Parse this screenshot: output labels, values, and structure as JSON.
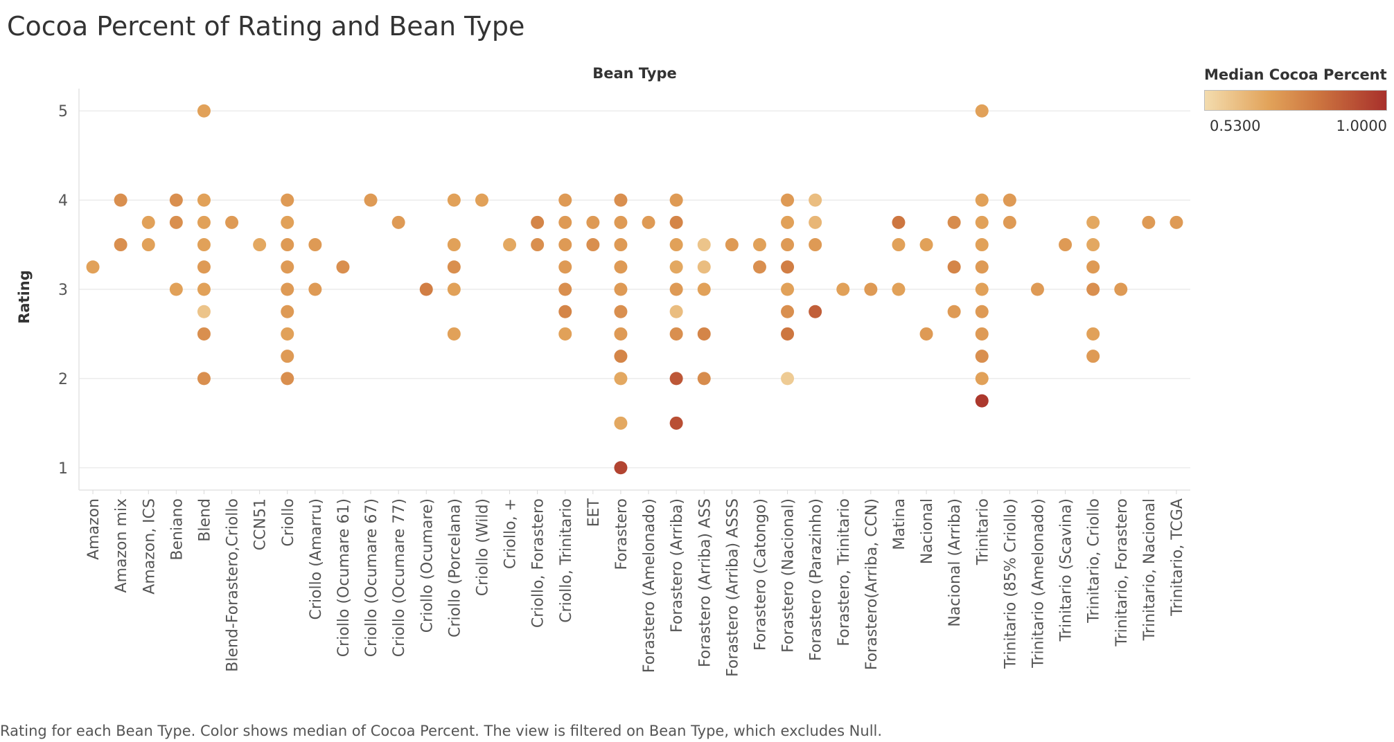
{
  "title": "Cocoa Percent of Rating and Bean Type",
  "caption": "Rating for each Bean Type.  Color shows median of Cocoa Percent. The view is filtered on Bean Type, which excludes Null.",
  "legend": {
    "title": "Median Cocoa Percent",
    "min_label": "0.5300",
    "max_label": "1.0000"
  },
  "colors": {
    "low": "#f3dcae",
    "mid1": "#e2a35a",
    "mid2": "#cd7640",
    "high": "#a8302b"
  },
  "chart_data": {
    "type": "scatter",
    "column_header": "Bean Type",
    "ylabel": "Rating",
    "ylim": [
      0.75,
      5.25
    ],
    "yticks": [
      1,
      2,
      3,
      4,
      5
    ],
    "grid": true,
    "color_measure": "Median Cocoa Percent",
    "color_range": [
      0.53,
      1.0
    ],
    "categories": [
      "Amazon",
      "Amazon mix",
      "Amazon, ICS",
      "Beniano",
      "Blend",
      "Blend-Forastero,Criollo",
      "CCN51",
      "Criollo",
      "Criollo (Amarru)",
      "Criollo (Ocumare 61)",
      "Criollo (Ocumare 67)",
      "Criollo (Ocumare 77)",
      "Criollo (Ocumare)",
      "Criollo (Porcelana)",
      "Criollo (Wild)",
      "Criollo, +",
      "Criollo, Forastero",
      "Criollo, Trinitario",
      "EET",
      "Forastero",
      "Forastero (Amelonado)",
      "Forastero (Arriba)",
      "Forastero (Arriba) ASS",
      "Forastero (Arriba) ASSS",
      "Forastero (Catongo)",
      "Forastero (Nacional)",
      "Forastero (Parazinho)",
      "Forastero, Trinitario",
      "Forastero(Arriba, CCN)",
      "Matina",
      "Nacional",
      "Nacional (Arriba)",
      "Trinitario",
      "Trinitario (85% Criollo)",
      "Trinitario (Amelonado)",
      "Trinitario (Scavina)",
      "Trinitario, Criollo",
      "Trinitario, Forastero",
      "Trinitario, Nacional",
      "Trinitario, TCGA"
    ],
    "points": [
      [
        "Amazon",
        3.25,
        0.7
      ],
      [
        "Amazon mix",
        4.0,
        0.75
      ],
      [
        "Amazon mix",
        3.5,
        0.75
      ],
      [
        "Amazon, ICS",
        3.75,
        0.7
      ],
      [
        "Amazon, ICS",
        3.5,
        0.7
      ],
      [
        "Beniano",
        4.0,
        0.75
      ],
      [
        "Beniano",
        3.75,
        0.75
      ],
      [
        "Beniano",
        3.0,
        0.7
      ],
      [
        "Blend",
        5.0,
        0.7
      ],
      [
        "Blend",
        4.0,
        0.7
      ],
      [
        "Blend",
        3.75,
        0.7
      ],
      [
        "Blend",
        3.5,
        0.7
      ],
      [
        "Blend",
        3.25,
        0.72
      ],
      [
        "Blend",
        3.0,
        0.7
      ],
      [
        "Blend",
        2.75,
        0.6
      ],
      [
        "Blend",
        2.5,
        0.75
      ],
      [
        "Blend",
        2.0,
        0.75
      ],
      [
        "Blend-Forastero,Criollo",
        3.75,
        0.72
      ],
      [
        "CCN51",
        3.5,
        0.68
      ],
      [
        "Criollo",
        4.0,
        0.72
      ],
      [
        "Criollo",
        3.75,
        0.7
      ],
      [
        "Criollo",
        3.5,
        0.72
      ],
      [
        "Criollo",
        3.25,
        0.72
      ],
      [
        "Criollo",
        3.0,
        0.72
      ],
      [
        "Criollo",
        2.75,
        0.72
      ],
      [
        "Criollo",
        2.5,
        0.7
      ],
      [
        "Criollo",
        2.25,
        0.72
      ],
      [
        "Criollo",
        2.0,
        0.75
      ],
      [
        "Criollo (Amarru)",
        3.5,
        0.72
      ],
      [
        "Criollo (Amarru)",
        3.0,
        0.72
      ],
      [
        "Criollo (Ocumare 61)",
        3.25,
        0.75
      ],
      [
        "Criollo (Ocumare 67)",
        4.0,
        0.72
      ],
      [
        "Criollo (Ocumare 77)",
        3.75,
        0.72
      ],
      [
        "Criollo (Ocumare)",
        3.0,
        0.8
      ],
      [
        "Criollo (Porcelana)",
        4.0,
        0.7
      ],
      [
        "Criollo (Porcelana)",
        3.5,
        0.7
      ],
      [
        "Criollo (Porcelana)",
        3.25,
        0.75
      ],
      [
        "Criollo (Porcelana)",
        3.0,
        0.7
      ],
      [
        "Criollo (Porcelana)",
        2.5,
        0.7
      ],
      [
        "Criollo (Wild)",
        4.0,
        0.7
      ],
      [
        "Criollo, +",
        3.5,
        0.68
      ],
      [
        "Criollo, Forastero",
        3.75,
        0.78
      ],
      [
        "Criollo, Forastero",
        3.5,
        0.75
      ],
      [
        "Criollo, Trinitario",
        4.0,
        0.72
      ],
      [
        "Criollo, Trinitario",
        3.75,
        0.72
      ],
      [
        "Criollo, Trinitario",
        3.5,
        0.72
      ],
      [
        "Criollo, Trinitario",
        3.25,
        0.72
      ],
      [
        "Criollo, Trinitario",
        3.0,
        0.75
      ],
      [
        "Criollo, Trinitario",
        2.75,
        0.78
      ],
      [
        "Criollo, Trinitario",
        2.5,
        0.7
      ],
      [
        "EET",
        3.75,
        0.72
      ],
      [
        "EET",
        3.5,
        0.75
      ],
      [
        "Forastero",
        4.0,
        0.75
      ],
      [
        "Forastero",
        3.75,
        0.72
      ],
      [
        "Forastero",
        3.5,
        0.72
      ],
      [
        "Forastero",
        3.25,
        0.72
      ],
      [
        "Forastero",
        3.0,
        0.72
      ],
      [
        "Forastero",
        2.75,
        0.75
      ],
      [
        "Forastero",
        2.5,
        0.72
      ],
      [
        "Forastero",
        2.25,
        0.78
      ],
      [
        "Forastero",
        2.0,
        0.68
      ],
      [
        "Forastero",
        1.5,
        0.68
      ],
      [
        "Forastero",
        1.0,
        0.95
      ],
      [
        "Forastero (Amelonado)",
        3.75,
        0.72
      ],
      [
        "Forastero (Arriba)",
        4.0,
        0.72
      ],
      [
        "Forastero (Arriba)",
        3.75,
        0.78
      ],
      [
        "Forastero (Arriba)",
        3.5,
        0.7
      ],
      [
        "Forastero (Arriba)",
        3.25,
        0.68
      ],
      [
        "Forastero (Arriba)",
        3.0,
        0.72
      ],
      [
        "Forastero (Arriba)",
        2.75,
        0.62
      ],
      [
        "Forastero (Arriba)",
        2.5,
        0.75
      ],
      [
        "Forastero (Arriba)",
        2.0,
        0.9
      ],
      [
        "Forastero (Arriba)",
        1.5,
        0.92
      ],
      [
        "Forastero (Arriba) ASS",
        3.5,
        0.6
      ],
      [
        "Forastero (Arriba) ASS",
        3.25,
        0.62
      ],
      [
        "Forastero (Arriba) ASS",
        3.0,
        0.7
      ],
      [
        "Forastero (Arriba) ASS",
        2.5,
        0.78
      ],
      [
        "Forastero (Arriba) ASS",
        2.0,
        0.76
      ],
      [
        "Forastero (Arriba) ASSS",
        3.5,
        0.72
      ],
      [
        "Forastero (Catongo)",
        3.5,
        0.7
      ],
      [
        "Forastero (Catongo)",
        3.25,
        0.75
      ],
      [
        "Forastero (Nacional)",
        4.0,
        0.72
      ],
      [
        "Forastero (Nacional)",
        3.75,
        0.7
      ],
      [
        "Forastero (Nacional)",
        3.5,
        0.72
      ],
      [
        "Forastero (Nacional)",
        3.25,
        0.8
      ],
      [
        "Forastero (Nacional)",
        3.0,
        0.7
      ],
      [
        "Forastero (Nacional)",
        2.75,
        0.75
      ],
      [
        "Forastero (Nacional)",
        2.5,
        0.82
      ],
      [
        "Forastero (Nacional)",
        2.0,
        0.58
      ],
      [
        "Forastero (Parazinho)",
        4.0,
        0.62
      ],
      [
        "Forastero (Parazinho)",
        3.75,
        0.64
      ],
      [
        "Forastero (Parazinho)",
        3.5,
        0.72
      ],
      [
        "Forastero (Parazinho)",
        2.75,
        0.88
      ],
      [
        "Forastero, Trinitario",
        3.0,
        0.7
      ],
      [
        "Forastero(Arriba, CCN)",
        3.0,
        0.72
      ],
      [
        "Matina",
        3.75,
        0.82
      ],
      [
        "Matina",
        3.5,
        0.7
      ],
      [
        "Matina",
        3.0,
        0.7
      ],
      [
        "Nacional",
        3.5,
        0.7
      ],
      [
        "Nacional",
        2.5,
        0.72
      ],
      [
        "Nacional (Arriba)",
        3.75,
        0.76
      ],
      [
        "Nacional (Arriba)",
        3.25,
        0.78
      ],
      [
        "Nacional (Arriba)",
        2.75,
        0.72
      ],
      [
        "Trinitario",
        5.0,
        0.7
      ],
      [
        "Trinitario",
        4.0,
        0.7
      ],
      [
        "Trinitario",
        3.75,
        0.7
      ],
      [
        "Trinitario",
        3.5,
        0.7
      ],
      [
        "Trinitario",
        3.25,
        0.72
      ],
      [
        "Trinitario",
        3.0,
        0.7
      ],
      [
        "Trinitario",
        2.75,
        0.72
      ],
      [
        "Trinitario",
        2.5,
        0.72
      ],
      [
        "Trinitario",
        2.25,
        0.75
      ],
      [
        "Trinitario",
        2.0,
        0.7
      ],
      [
        "Trinitario",
        1.75,
        0.98
      ],
      [
        "Trinitario (85% Criollo)",
        4.0,
        0.72
      ],
      [
        "Trinitario (85% Criollo)",
        3.75,
        0.72
      ],
      [
        "Trinitario (Amelonado)",
        3.0,
        0.72
      ],
      [
        "Trinitario (Scavina)",
        3.5,
        0.72
      ],
      [
        "Trinitario, Criollo",
        3.75,
        0.68
      ],
      [
        "Trinitario, Criollo",
        3.5,
        0.68
      ],
      [
        "Trinitario, Criollo",
        3.25,
        0.72
      ],
      [
        "Trinitario, Criollo",
        3.0,
        0.75
      ],
      [
        "Trinitario, Criollo",
        2.5,
        0.7
      ],
      [
        "Trinitario, Criollo",
        2.25,
        0.72
      ],
      [
        "Trinitario, Forastero",
        3.0,
        0.72
      ],
      [
        "Trinitario, Nacional",
        3.75,
        0.72
      ],
      [
        "Trinitario, TCGA",
        3.75,
        0.72
      ]
    ]
  }
}
